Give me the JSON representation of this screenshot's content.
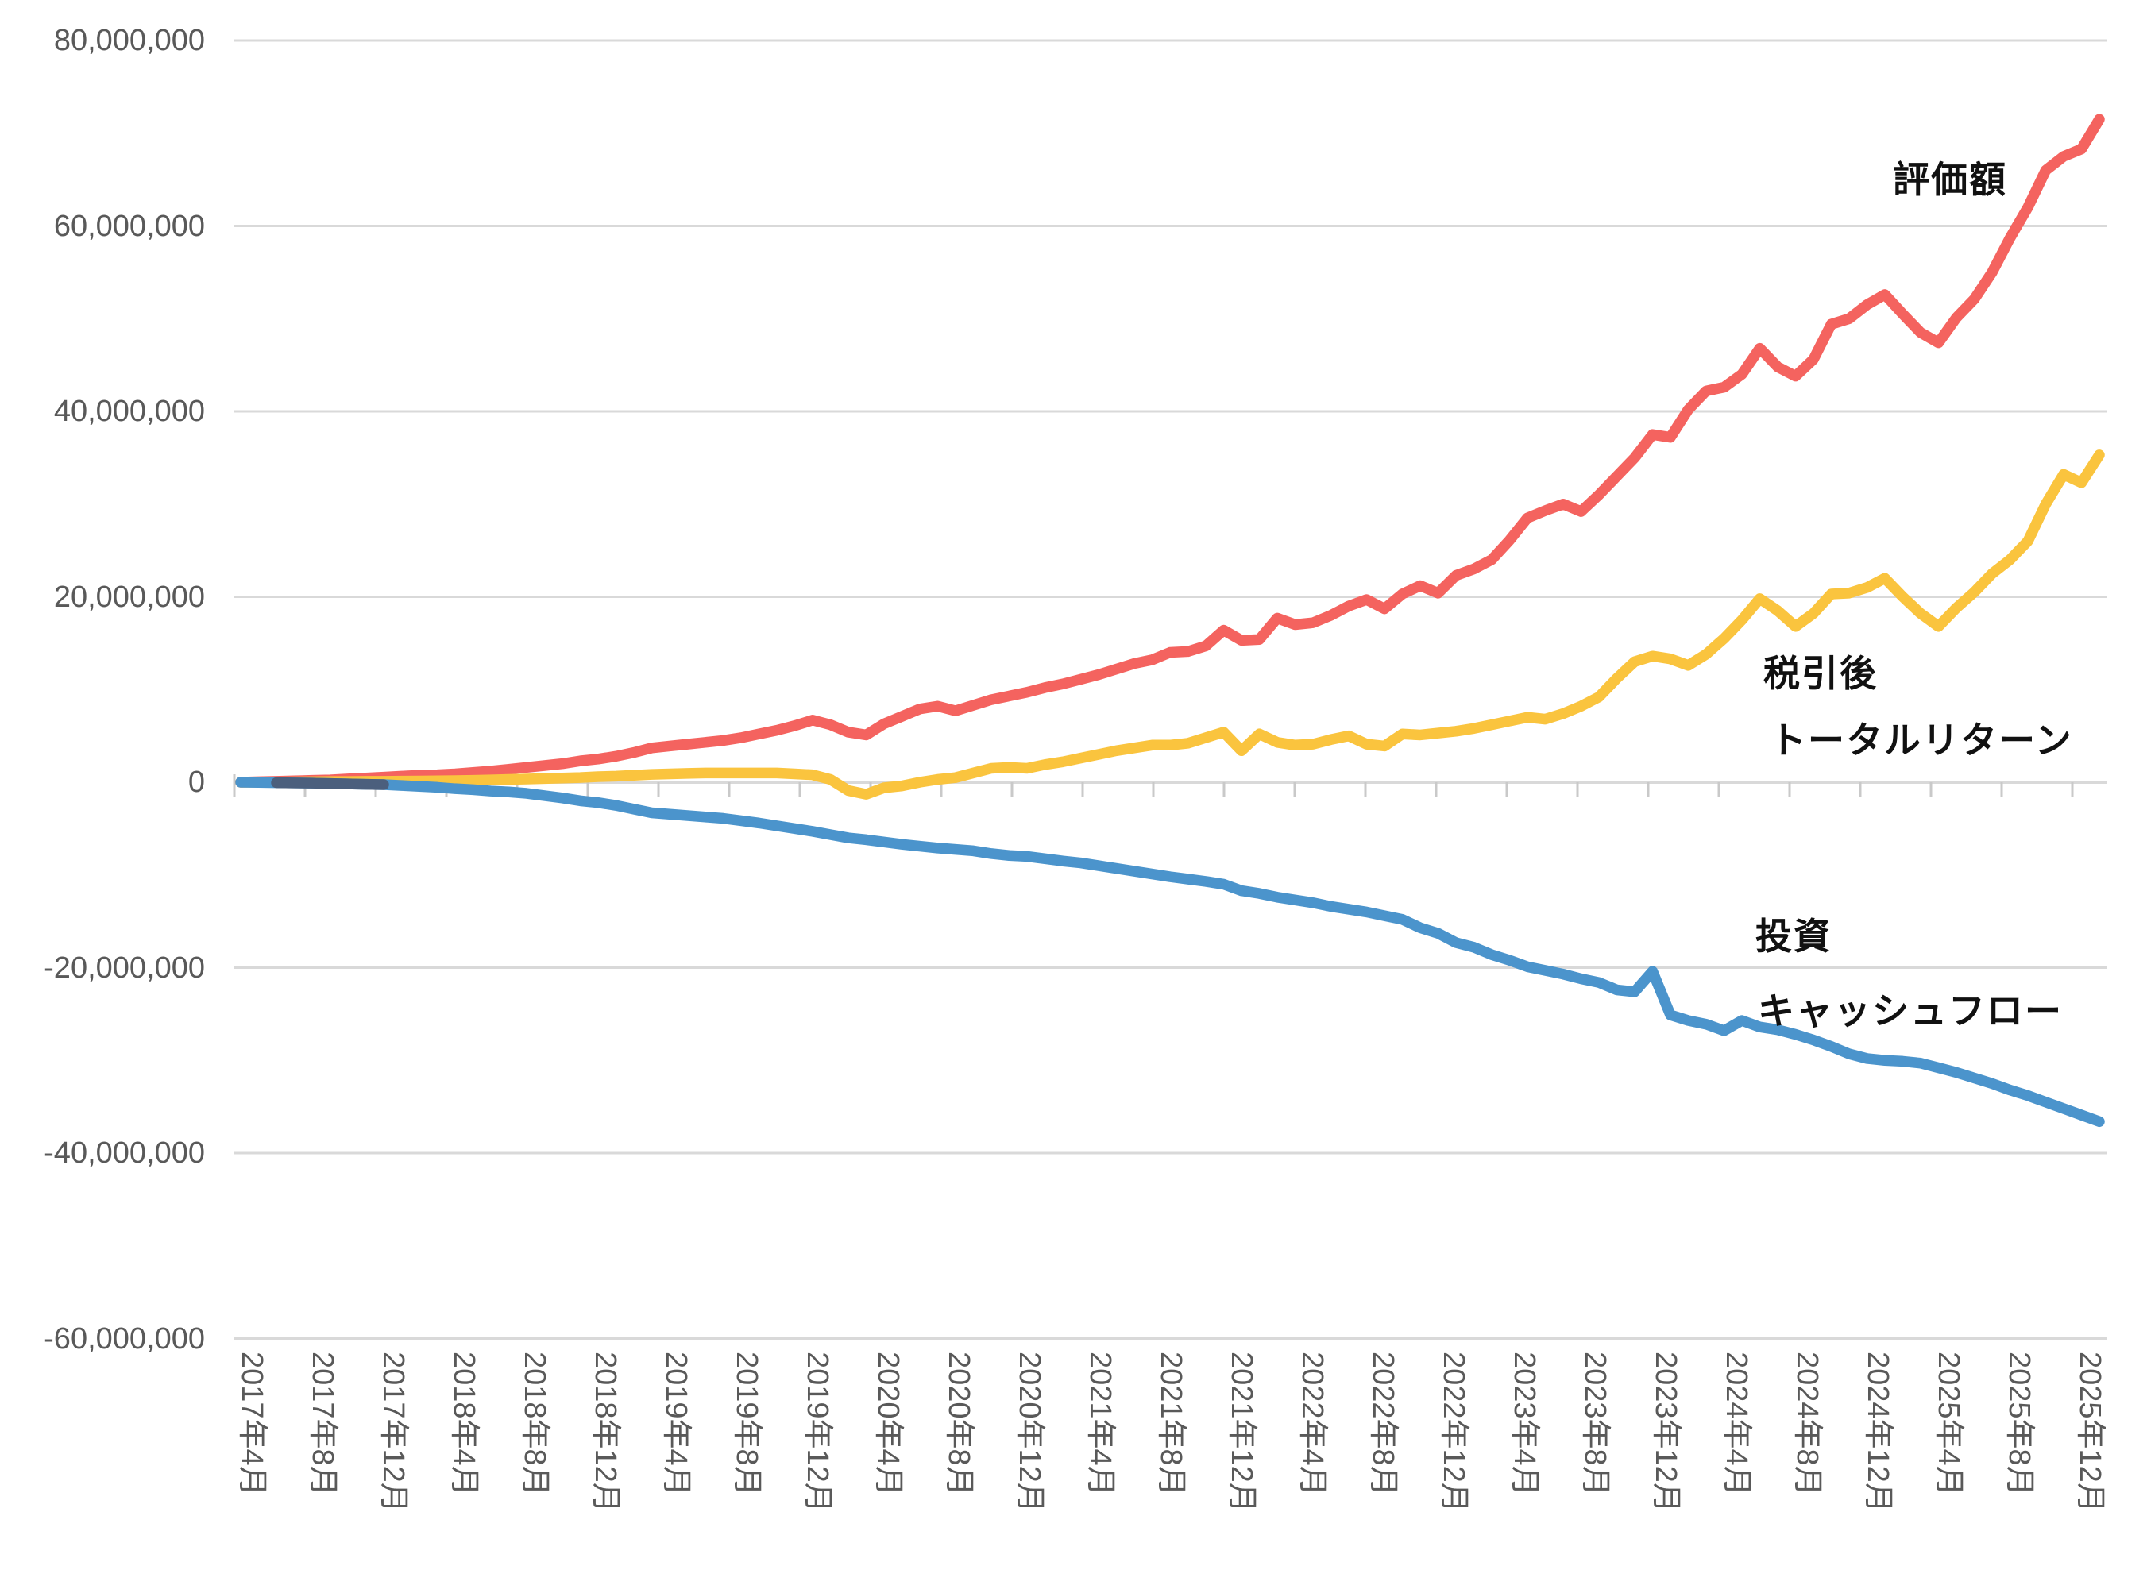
{
  "page": {
    "background": "#ffffff"
  },
  "chart_data": {
    "type": "line",
    "title": "",
    "grid": true,
    "legend_position": "inline-annotations",
    "unit_multiplier": 1000000,
    "x_start": "2017年4月",
    "x_end": "2025年12月",
    "x_frequency": "monthly",
    "x_tick_labels": [
      "2017年4月",
      "2017年8月",
      "2017年12月",
      "2018年4月",
      "2018年8月",
      "2018年12月",
      "2019年4月",
      "2019年8月",
      "2019年12月",
      "2020年4月",
      "2020年8月",
      "2020年12月",
      "2021年4月",
      "2021年8月",
      "2021年12月",
      "2022年4月",
      "2022年8月",
      "2022年12月",
      "2023年4月",
      "2023年8月",
      "2023年12月",
      "2024年4月",
      "2024年8月",
      "2024年12月",
      "2025年4月",
      "2025年8月",
      "2025年12月"
    ],
    "y_tick_labels": [
      "80,000,000",
      "60,000,000",
      "40,000,000",
      "20,000,000",
      "0",
      "-20,000,000",
      "-40,000,000",
      "-60,000,000"
    ],
    "ylim_millions": [
      -60,
      80
    ],
    "y_step_millions": 20,
    "colors": {
      "grid": "#d9d9d9",
      "axis": "#c9c9c9",
      "tick_text": "#595959",
      "annotation_text": "#111111",
      "overlap_segment": "#4b5f7d"
    },
    "series": [
      {
        "name": "評価額",
        "color": "#f4635f",
        "values_millions": [
          0,
          0.05,
          0.1,
          0.15,
          0.2,
          0.25,
          0.35,
          0.45,
          0.55,
          0.65,
          0.75,
          0.8,
          0.9,
          1.05,
          1.2,
          1.4,
          1.6,
          1.8,
          2,
          2.3,
          2.5,
          2.8,
          3.2,
          3.7,
          3.9,
          4.1,
          4.3,
          4.5,
          4.8,
          5.2,
          5.6,
          6.1,
          6.7,
          6.2,
          5.4,
          5.1,
          6.3,
          7.1,
          7.9,
          8.2,
          7.7,
          8.3,
          8.9,
          9.3,
          9.7,
          10.2,
          10.6,
          11.1,
          11.6,
          12.2,
          12.8,
          13.2,
          14,
          14.1,
          14.7,
          16.4,
          15.3,
          15.4,
          17.7,
          17,
          17.2,
          18,
          19,
          19.7,
          18.7,
          20.3,
          21.2,
          20.4,
          22.3,
          23,
          24,
          26.1,
          28.5,
          29.3,
          30,
          29.2,
          31,
          33,
          35,
          37.5,
          37.2,
          40.2,
          42.2,
          42.6,
          44,
          46.8,
          44.8,
          43.8,
          45.6,
          49.4,
          50,
          51.5,
          52.6,
          50.5,
          48.5,
          47.4,
          50.1,
          52.1,
          55,
          58.7,
          62,
          66,
          67.5,
          68.3,
          71.5
        ]
      },
      {
        "name": "税引後トータルリターン",
        "color": "#fac43e",
        "values_millions": [
          0,
          0,
          0.02,
          0.03,
          0.05,
          0.07,
          0.08,
          0.1,
          0.1,
          0.12,
          0.13,
          0.15,
          0.17,
          0.2,
          0.25,
          0.3,
          0.34,
          0.4,
          0.45,
          0.5,
          0.6,
          0.65,
          0.75,
          0.85,
          0.9,
          0.95,
          1,
          1,
          1,
          1,
          1,
          0.9,
          0.8,
          0.3,
          -0.9,
          -1.3,
          -0.6,
          -0.4,
          0,
          0.3,
          0.5,
          1,
          1.5,
          1.6,
          1.5,
          1.9,
          2.2,
          2.6,
          3,
          3.4,
          3.7,
          4,
          4,
          4.2,
          4.8,
          5.4,
          3.4,
          5.2,
          4.3,
          4,
          4.1,
          4.6,
          5,
          4.1,
          3.9,
          5.2,
          5.1,
          5.3,
          5.5,
          5.8,
          6.2,
          6.6,
          7,
          6.8,
          7.4,
          8.2,
          9.2,
          11.2,
          13,
          13.6,
          13.3,
          12.6,
          13.8,
          15.5,
          17.5,
          19.8,
          18.5,
          16.8,
          18.2,
          20.3,
          20.4,
          21,
          22,
          20,
          18.2,
          16.8,
          18.8,
          20.5,
          22.5,
          24,
          26,
          30,
          33.2,
          32.3,
          35.3
        ]
      },
      {
        "name": "投資キャッシュフロー",
        "color": "#4b94cc",
        "values_millions": [
          0,
          -0.02,
          -0.05,
          -0.08,
          -0.1,
          -0.14,
          -0.18,
          -0.22,
          -0.26,
          -0.35,
          -0.45,
          -0.55,
          -0.7,
          -0.8,
          -0.95,
          -1.05,
          -1.2,
          -1.45,
          -1.7,
          -2,
          -2.2,
          -2.5,
          -2.9,
          -3.3,
          -3.45,
          -3.6,
          -3.75,
          -3.9,
          -4.15,
          -4.4,
          -4.7,
          -5,
          -5.3,
          -5.65,
          -6,
          -6.2,
          -6.45,
          -6.7,
          -6.9,
          -7.1,
          -7.25,
          -7.4,
          -7.7,
          -7.9,
          -8,
          -8.25,
          -8.5,
          -8.7,
          -9,
          -9.3,
          -9.6,
          -9.9,
          -10.2,
          -10.45,
          -10.7,
          -11,
          -11.7,
          -12,
          -12.4,
          -12.7,
          -13,
          -13.4,
          -13.7,
          -14,
          -14.4,
          -14.8,
          -15.7,
          -16.3,
          -17.3,
          -17.8,
          -18.6,
          -19.2,
          -19.9,
          -20.3,
          -20.7,
          -21.2,
          -21.6,
          -22.4,
          -22.6,
          -20.4,
          -25.1,
          -25.7,
          -26.1,
          -26.8,
          -25.7,
          -26.4,
          -26.7,
          -27.2,
          -27.8,
          -28.5,
          -29.3,
          -29.8,
          -30,
          -30.1,
          -30.3,
          -30.8,
          -31.3,
          -31.9,
          -32.5,
          -33.2,
          -33.8,
          -34.5,
          -35.2,
          -35.9,
          -36.6
        ]
      }
    ]
  },
  "annotations": {
    "valuation_label": "評価額",
    "after_tax_line1": "税引後",
    "after_tax_line2": "トータルリターン",
    "investment_line1": "投資",
    "investment_line2": "キャッシュフロー"
  }
}
